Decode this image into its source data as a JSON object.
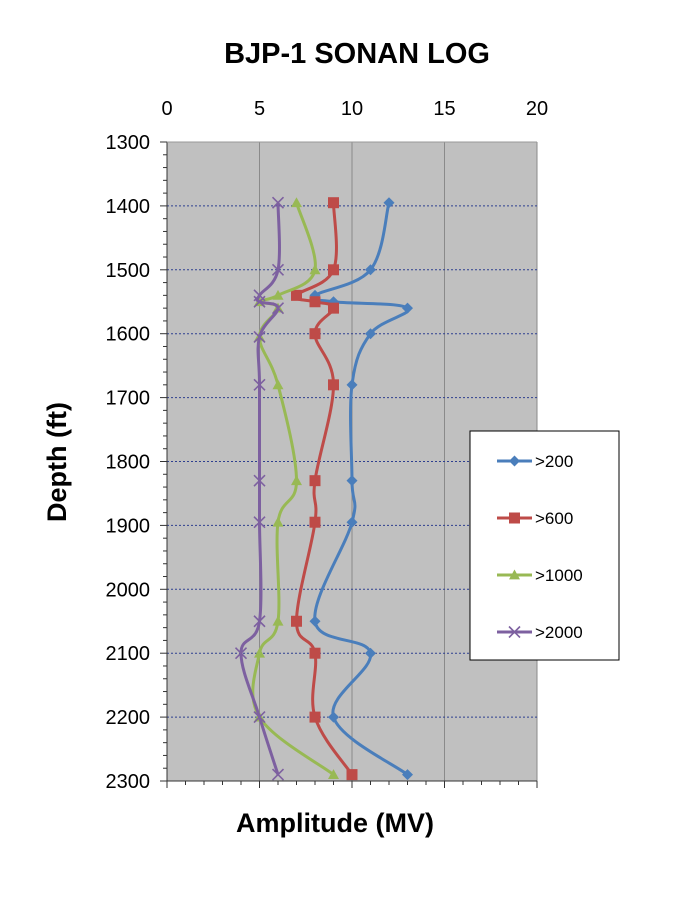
{
  "chart_data": {
    "type": "line",
    "title": "BJP-1 SONAN LOG",
    "xlabel": "Amplitude (MV)",
    "ylabel": "Depth (ft)",
    "xlim": [
      0,
      20
    ],
    "ylim": [
      1300,
      2300
    ],
    "y_inverted": true,
    "x_axis_position": "top",
    "x_ticks": [
      "0",
      "5",
      "10",
      "15",
      "20"
    ],
    "y_ticks": [
      "1300",
      "1400",
      "1500",
      "1600",
      "1700",
      "1800",
      "1900",
      "2000",
      "2100",
      "2200",
      "2300"
    ],
    "plot_background": "#c0c0c0",
    "grid": "vertical major lines at x ticks; dotted horizontal lines at depth ticks",
    "legend_position": "right",
    "series": [
      {
        "name": ">200",
        "color": "#4a7ebb",
        "marker": "diamond",
        "points": [
          [
            12,
            1395
          ],
          [
            11,
            1500
          ],
          [
            8,
            1540
          ],
          [
            9,
            1550
          ],
          [
            13,
            1560
          ],
          [
            11,
            1600
          ],
          [
            10,
            1680
          ],
          [
            10,
            1830
          ],
          [
            10,
            1895
          ],
          [
            8,
            2050
          ],
          [
            11,
            2100
          ],
          [
            9,
            2200
          ],
          [
            13,
            2290
          ]
        ]
      },
      {
        "name": ">600",
        "color": "#be4b48",
        "marker": "square",
        "points": [
          [
            9,
            1395
          ],
          [
            9,
            1500
          ],
          [
            7,
            1540
          ],
          [
            8,
            1550
          ],
          [
            9,
            1560
          ],
          [
            8,
            1600
          ],
          [
            9,
            1680
          ],
          [
            8,
            1830
          ],
          [
            8,
            1895
          ],
          [
            7,
            2050
          ],
          [
            8,
            2100
          ],
          [
            8,
            2200
          ],
          [
            10,
            2290
          ]
        ]
      },
      {
        "name": ">1000",
        "color": "#98b954",
        "marker": "triangle",
        "points": [
          [
            7,
            1395
          ],
          [
            8,
            1500
          ],
          [
            6,
            1540
          ],
          [
            5,
            1550
          ],
          [
            6,
            1560
          ],
          [
            5,
            1605
          ],
          [
            6,
            1680
          ],
          [
            7,
            1830
          ],
          [
            6,
            1895
          ],
          [
            6,
            2050
          ],
          [
            5,
            2100
          ],
          [
            5,
            2200
          ],
          [
            9,
            2290
          ]
        ]
      },
      {
        "name": ">2000",
        "color": "#7d60a0",
        "marker": "x",
        "points": [
          [
            6,
            1395
          ],
          [
            6,
            1500
          ],
          [
            5,
            1540
          ],
          [
            5,
            1550
          ],
          [
            6,
            1560
          ],
          [
            5,
            1605
          ],
          [
            5,
            1680
          ],
          [
            5,
            1830
          ],
          [
            5,
            1895
          ],
          [
            5,
            2050
          ],
          [
            4,
            2100
          ],
          [
            5,
            2200
          ],
          [
            6,
            2290
          ]
        ]
      }
    ]
  }
}
